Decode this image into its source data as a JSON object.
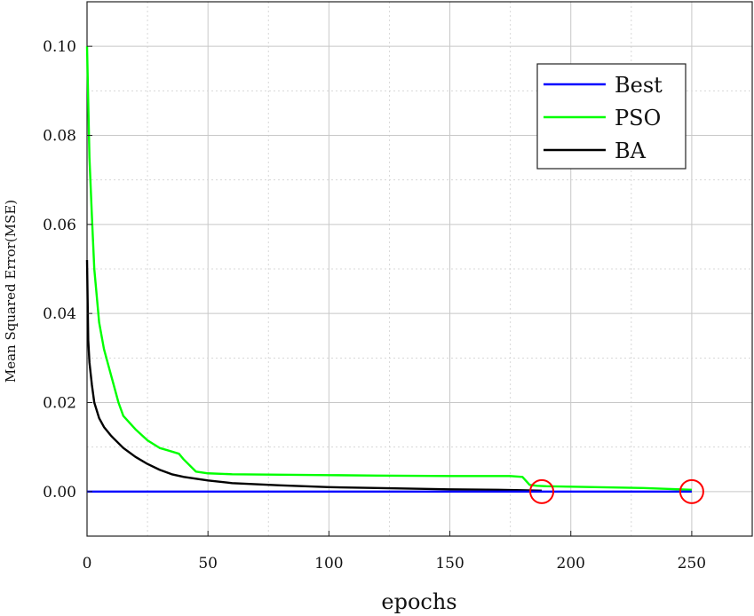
{
  "chart_data": {
    "type": "line",
    "xlabel": "epochs",
    "ylabel": "Mean Squared Error(MSE)",
    "xlim": [
      0,
      275
    ],
    "ylim": [
      -0.01,
      0.11
    ],
    "x_ticks": [
      0,
      50,
      100,
      150,
      200,
      250
    ],
    "y_ticks": [
      0.0,
      0.02,
      0.04,
      0.06,
      0.08,
      0.1
    ],
    "x_tick_labels": [
      "0",
      "50",
      "100",
      "150",
      "200",
      "250"
    ],
    "y_tick_labels": [
      "0.00",
      "0.02",
      "0.04",
      "0.06",
      "0.08",
      "0.10"
    ],
    "grid": true,
    "legend_position": "top-right",
    "series": [
      {
        "name": "Best",
        "color": "#0000ff",
        "x": [
          0,
          250
        ],
        "y": [
          0.0,
          0.0
        ]
      },
      {
        "name": "PSO",
        "color": "#00ff00",
        "x": [
          0,
          1,
          2,
          3,
          5,
          7,
          10,
          13,
          15,
          20,
          25,
          30,
          35,
          38,
          40,
          45,
          50,
          60,
          80,
          100,
          120,
          150,
          175,
          180,
          183,
          186,
          190,
          200,
          210,
          220,
          230,
          240,
          250
        ],
        "y": [
          0.1,
          0.075,
          0.062,
          0.05,
          0.038,
          0.032,
          0.026,
          0.02,
          0.017,
          0.014,
          0.0115,
          0.0098,
          0.009,
          0.0085,
          0.0072,
          0.0045,
          0.0041,
          0.0039,
          0.0038,
          0.0037,
          0.0036,
          0.0035,
          0.0035,
          0.0033,
          0.0015,
          0.0013,
          0.0012,
          0.0011,
          0.001,
          0.0009,
          0.0008,
          0.0006,
          0.0004
        ]
      },
      {
        "name": "BA",
        "color": "#000000",
        "x": [
          0,
          0.5,
          1,
          2,
          3,
          5,
          7,
          10,
          15,
          20,
          25,
          30,
          35,
          40,
          50,
          60,
          80,
          100,
          120,
          150,
          170,
          180,
          188
        ],
        "y": [
          0.052,
          0.034,
          0.029,
          0.024,
          0.02,
          0.0165,
          0.0145,
          0.0125,
          0.0098,
          0.0078,
          0.0062,
          0.0049,
          0.0039,
          0.0033,
          0.0025,
          0.0019,
          0.0014,
          0.001,
          0.0008,
          0.0005,
          0.0004,
          0.0003,
          0.0002
        ]
      }
    ],
    "annotations": [
      {
        "type": "circle",
        "x": 188,
        "y": 0.0,
        "color": "#ff0000"
      },
      {
        "type": "circle",
        "x": 250,
        "y": 0.0,
        "color": "#ff0000"
      }
    ]
  }
}
